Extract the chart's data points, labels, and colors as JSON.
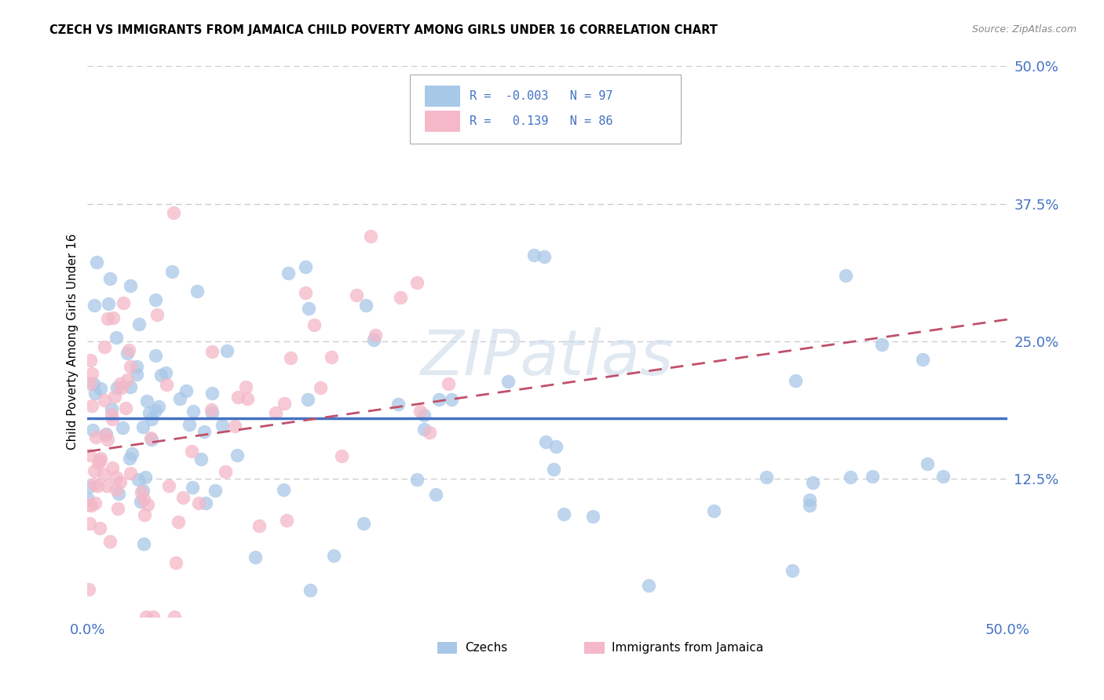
{
  "title": "CZECH VS IMMIGRANTS FROM JAMAICA CHILD POVERTY AMONG GIRLS UNDER 16 CORRELATION CHART",
  "source": "Source: ZipAtlas.com",
  "ylabel": "Child Poverty Among Girls Under 16",
  "xlim": [
    0,
    50
  ],
  "ylim": [
    0,
    50
  ],
  "xticks": [
    0,
    12.5,
    25,
    37.5,
    50
  ],
  "yticks": [
    0,
    12.5,
    25,
    37.5,
    50
  ],
  "xtick_labels": [
    "0.0%",
    "",
    "",
    "",
    "50.0%"
  ],
  "ytick_labels": [
    "",
    "12.5%",
    "25.0%",
    "37.5%",
    "50.0%"
  ],
  "czech_R": -0.003,
  "czech_N": 97,
  "jamaica_R": 0.139,
  "jamaica_N": 86,
  "czech_color": "#a8c8e8",
  "jamaica_color": "#f4b8c8",
  "czech_line_color": "#4472c4",
  "jamaica_line_color": "#c0506a",
  "background_color": "#ffffff",
  "grid_color": "#c8c8d0",
  "watermark_text": "ZIPatlas",
  "legend_color": "#4472c4",
  "czech_line_y0": 18.0,
  "czech_line_y1": 18.0,
  "jamaica_line_y0": 15.0,
  "jamaica_line_y1": 27.0
}
